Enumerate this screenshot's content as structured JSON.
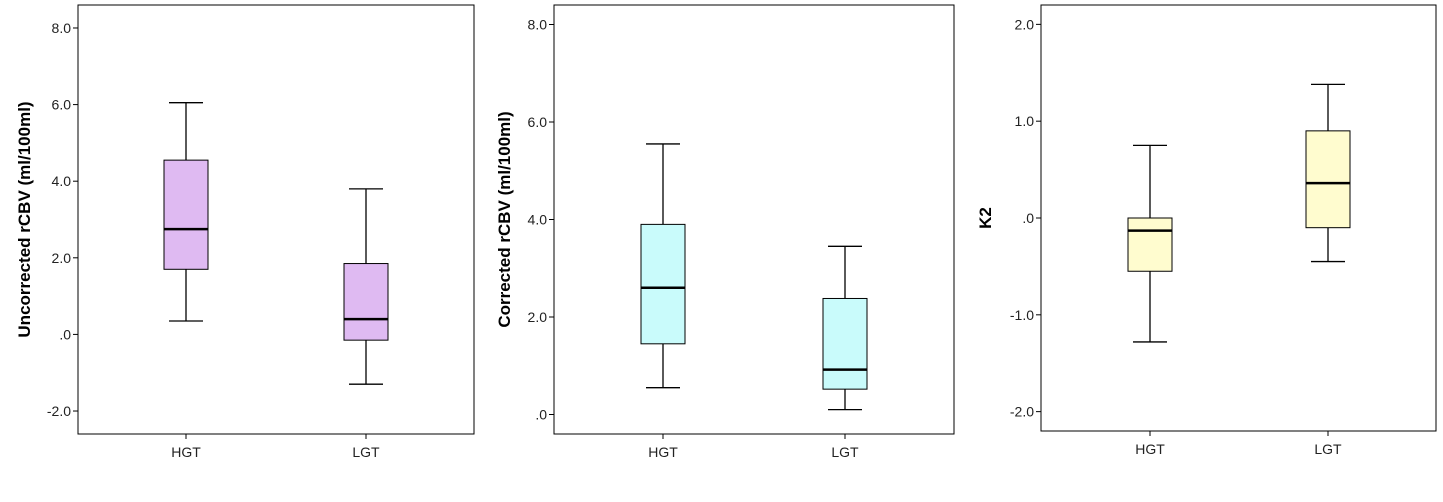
{
  "chart_data": [
    {
      "type": "box",
      "title": "",
      "xlabel": "",
      "ylabel": "Uncorrected rCBV (ml/100ml)",
      "ylim": [
        -2.6,
        8.6
      ],
      "yticks": [
        -2.0,
        0.0,
        2.0,
        4.0,
        6.0,
        8.0
      ],
      "ytick_labels": [
        "-2.0",
        ".0",
        "2.0",
        "4.0",
        "6.0",
        "8.0"
      ],
      "categories": [
        "HGT",
        "LGT"
      ],
      "fill_color": "#dfbaf2",
      "boxes": [
        {
          "category": "HGT",
          "whisker_low": 0.35,
          "q1": 1.7,
          "median": 2.75,
          "q3": 4.55,
          "whisker_high": 6.05
        },
        {
          "category": "LGT",
          "whisker_low": -1.3,
          "q1": -0.15,
          "median": 0.4,
          "q3": 1.85,
          "whisker_high": 3.8
        }
      ],
      "grid": false
    },
    {
      "type": "box",
      "title": "",
      "xlabel": "",
      "ylabel": "Corrected rCBV (ml/100ml)",
      "ylim": [
        -0.4,
        8.4
      ],
      "yticks": [
        0.0,
        2.0,
        4.0,
        6.0,
        8.0
      ],
      "ytick_labels": [
        ".0",
        "2.0",
        "4.0",
        "6.0",
        "8.0"
      ],
      "categories": [
        "HGT",
        "LGT"
      ],
      "fill_color": "#c9fbfb",
      "boxes": [
        {
          "category": "HGT",
          "whisker_low": 0.55,
          "q1": 1.45,
          "median": 2.6,
          "q3": 3.9,
          "whisker_high": 5.55
        },
        {
          "category": "LGT",
          "whisker_low": 0.1,
          "q1": 0.52,
          "median": 0.92,
          "q3": 2.38,
          "whisker_high": 3.45
        }
      ],
      "grid": false
    },
    {
      "type": "box",
      "title": "",
      "xlabel": "",
      "ylabel": "K2",
      "ylim": [
        -2.2,
        2.2
      ],
      "yticks": [
        -2.0,
        -1.0,
        0.0,
        1.0,
        2.0
      ],
      "ytick_labels": [
        "-2.0",
        "-1.0",
        ".0",
        "1.0",
        "2.0"
      ],
      "categories": [
        "HGT",
        "LGT"
      ],
      "fill_color": "#fffccf",
      "boxes": [
        {
          "category": "HGT",
          "whisker_low": -1.28,
          "q1": -0.55,
          "median": -0.13,
          "q3": 0.0,
          "whisker_high": 0.75
        },
        {
          "category": "LGT",
          "whisker_low": -0.45,
          "q1": -0.1,
          "median": 0.36,
          "q3": 0.9,
          "whisker_high": 1.38
        }
      ],
      "grid": false
    }
  ]
}
